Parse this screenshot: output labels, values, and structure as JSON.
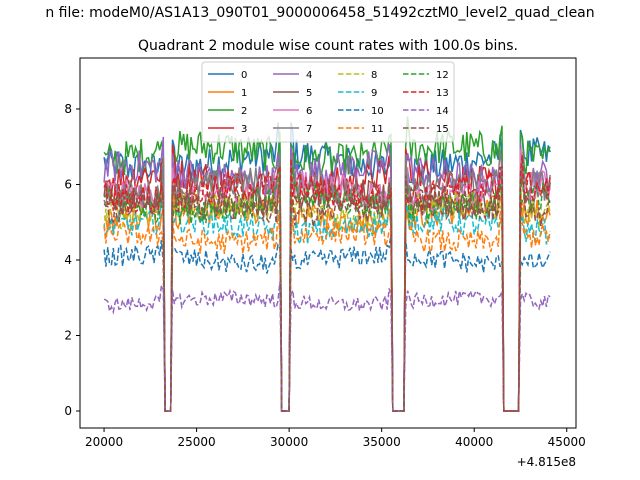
{
  "chart_data": {
    "type": "line",
    "suptitle": "n file: modeM0/AS1A13_090T01_9000006458_51492cztM0_level2_quad_clean",
    "title": "Quadrant 2 module wise count rates with 100.0s bins.",
    "xlabel": "",
    "ylabel": "",
    "x_offset_label": "+4.815e8",
    "xlim": [
      18700,
      45500
    ],
    "ylim": [
      -0.45,
      9.35
    ],
    "xticks": [
      20000,
      25000,
      30000,
      35000,
      40000,
      45000
    ],
    "xtick_labels": [
      "20000",
      "25000",
      "30000",
      "35000",
      "40000",
      "45000"
    ],
    "yticks": [
      0,
      2,
      4,
      6,
      8
    ],
    "ytick_labels": [
      "0",
      "2",
      "4",
      "6",
      "8"
    ],
    "grid": false,
    "legend_placement": "top-center",
    "legend_columns": 4,
    "x_start": 20000,
    "x_end": 44100,
    "bin_size": 100,
    "gaps": [
      [
        23300,
        23600
      ],
      [
        29600,
        30000
      ],
      [
        35600,
        36200
      ],
      [
        41600,
        42400
      ]
    ],
    "series": [
      {
        "name": "0",
        "color": "#1f77b4",
        "style": "solid",
        "level": 6.6
      },
      {
        "name": "1",
        "color": "#ff7f0e",
        "style": "solid",
        "level": 5.2
      },
      {
        "name": "2",
        "color": "#2ca02c",
        "style": "solid",
        "level": 6.8
      },
      {
        "name": "3",
        "color": "#d62728",
        "style": "solid",
        "level": 6.1
      },
      {
        "name": "4",
        "color": "#9467bd",
        "style": "solid",
        "level": 6.3
      },
      {
        "name": "5",
        "color": "#8c564b",
        "style": "solid",
        "level": 5.6
      },
      {
        "name": "6",
        "color": "#e377c2",
        "style": "solid",
        "level": 5.8
      },
      {
        "name": "7",
        "color": "#7f7f7f",
        "style": "solid",
        "level": 5.9
      },
      {
        "name": "8",
        "color": "#bcbd22",
        "style": "dashed",
        "level": 5.3
      },
      {
        "name": "9",
        "color": "#17becf",
        "style": "dashed",
        "level": 4.9
      },
      {
        "name": "10",
        "color": "#1f77b4",
        "style": "dashed",
        "level": 4.0
      },
      {
        "name": "11",
        "color": "#ff7f0e",
        "style": "dashed",
        "level": 4.6
      },
      {
        "name": "12",
        "color": "#2ca02c",
        "style": "dashed",
        "level": 5.5
      },
      {
        "name": "13",
        "color": "#d62728",
        "style": "dashed",
        "level": 5.8
      },
      {
        "name": "14",
        "color": "#9467bd",
        "style": "dashed",
        "level": 2.9
      },
      {
        "name": "15",
        "color": "#8c564b",
        "style": "dashed",
        "level": 5.4
      }
    ]
  }
}
